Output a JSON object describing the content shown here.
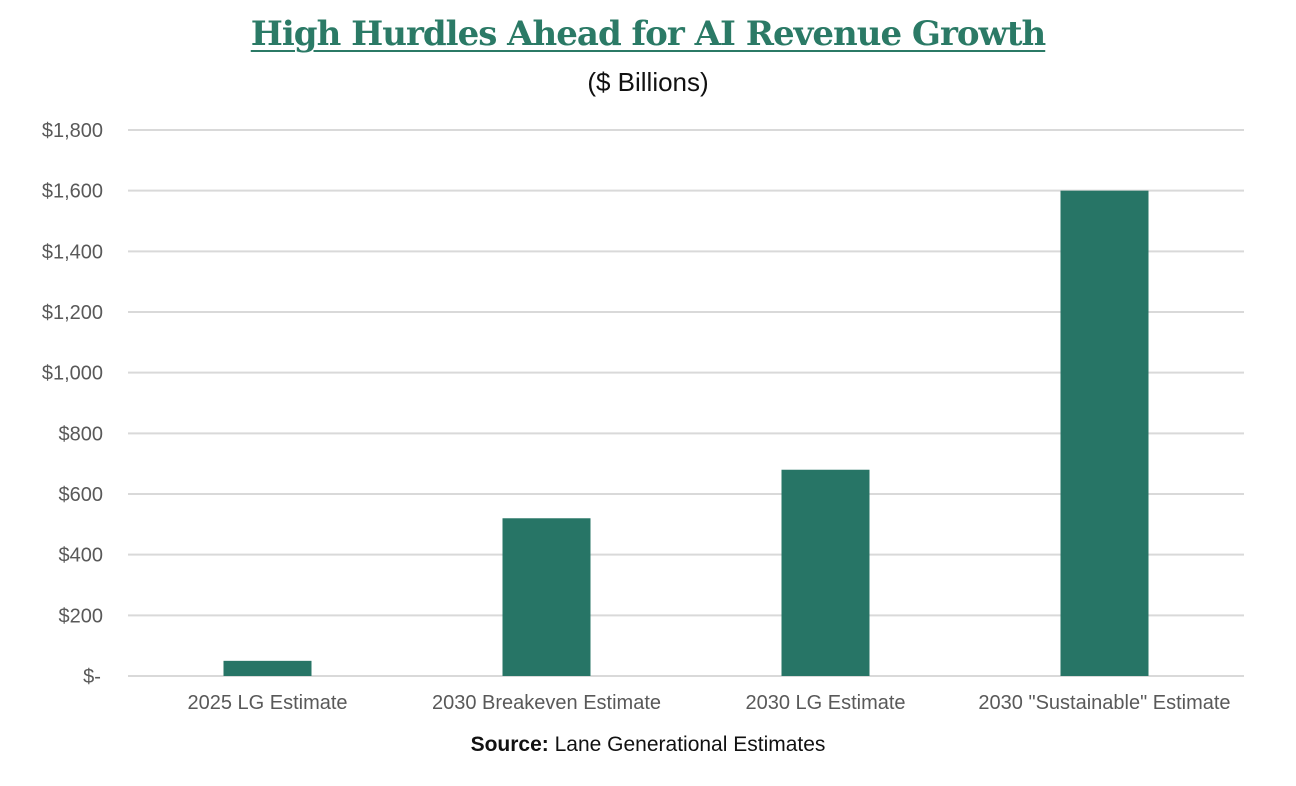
{
  "chart_data": {
    "type": "bar",
    "title": "High Hurdles Ahead for AI Revenue Growth",
    "subtitle": "($ Billions)",
    "xlabel": "",
    "ylabel": "",
    "categories": [
      "2025 LG Estimate",
      "2030 Breakeven Estimate",
      "2030 LG Estimate",
      "2030 \"Sustainable\" Estimate"
    ],
    "values": [
      50,
      520,
      680,
      1600
    ],
    "ylim": [
      0,
      1800
    ],
    "yticks": [
      0,
      200,
      400,
      600,
      800,
      1000,
      1200,
      1400,
      1600,
      1800
    ],
    "ytick_labels": [
      "$-",
      "$200",
      "$400",
      "$600",
      "$800",
      "$1,000",
      "$1,200",
      "$1,400",
      "$1,600",
      "$1,800"
    ],
    "grid": true,
    "legend": "none",
    "bar_color": "#277566",
    "source_label": "Source:",
    "source_text": "Lane Generational Estimates"
  }
}
